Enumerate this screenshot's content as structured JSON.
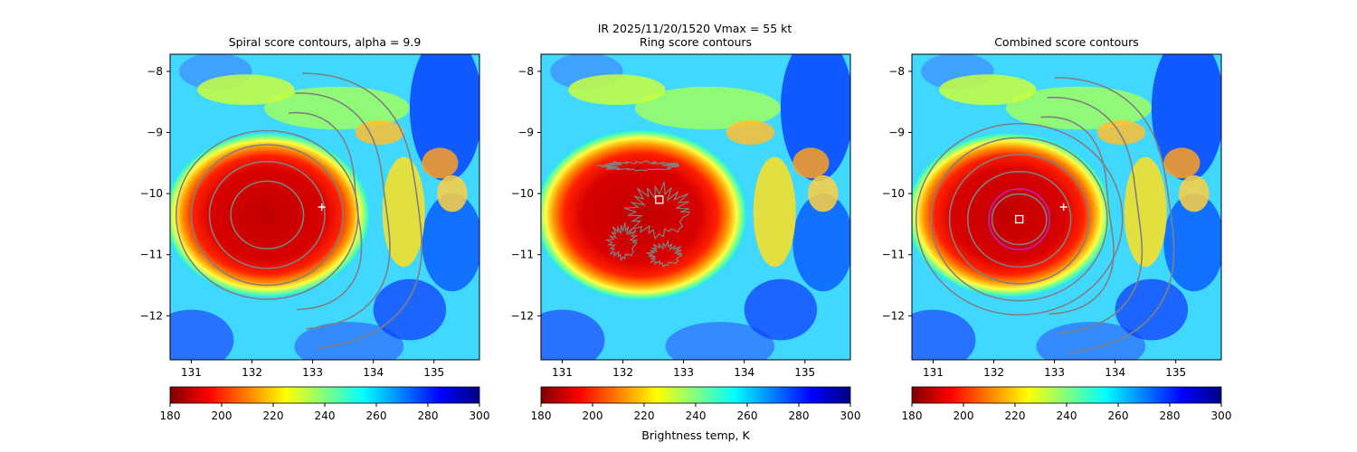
{
  "suptitle": "IR  2025/11/20/1520    Vmax = 55 kt",
  "colorbar_label": "Brightness temp, K",
  "colormap": [
    "#800000",
    "#ff0000",
    "#ff8000",
    "#ffff00",
    "#80ff80",
    "#00ffff",
    "#0080ff",
    "#0000ff",
    "#000080"
  ],
  "contour_color": "#808080",
  "circle_color": "#c020c0",
  "chart_data": [
    {
      "type": "heatmap",
      "title": "Spiral score contours, alpha =  9.9",
      "xlim": [
        130.65,
        135.75
      ],
      "ylim": [
        -12.72,
        -7.72
      ],
      "xticks": [
        131,
        132,
        133,
        134,
        135
      ],
      "yticks": [
        -8,
        -9,
        -10,
        -11,
        -12
      ],
      "storm_center": [
        132.25,
        -10.35
      ],
      "cold_radius_deg": [
        1.7,
        1.35
      ],
      "plus_marker": [
        133.15,
        -10.22
      ],
      "score_contours": {
        "center": [
          132.25,
          -10.35
        ],
        "radii": [
          0.6,
          0.95,
          1.25,
          1.5
        ],
        "spiral_bands": 3
      },
      "colorbar": {
        "min": 180,
        "max": 300,
        "ticks": [
          180,
          200,
          220,
          240,
          260,
          280,
          300
        ]
      }
    },
    {
      "type": "heatmap",
      "title": "Ring score contours",
      "xlim": [
        130.65,
        135.75
      ],
      "ylim": [
        -12.72,
        -7.72
      ],
      "xticks": [
        131,
        132,
        133,
        134,
        135
      ],
      "yticks": [
        -8,
        -9,
        -10,
        -11,
        -12
      ],
      "storm_center": [
        132.3,
        -10.35
      ],
      "cold_radius_deg": [
        1.75,
        1.4
      ],
      "square_marker": [
        132.6,
        -10.1
      ],
      "colorbar": {
        "min": 180,
        "max": 300,
        "ticks": [
          180,
          200,
          220,
          240,
          260,
          280,
          300
        ]
      }
    },
    {
      "type": "heatmap",
      "title": "Combined score contours",
      "xlim": [
        130.65,
        135.75
      ],
      "ylim": [
        -12.72,
        -7.72
      ],
      "xticks": [
        131,
        132,
        133,
        134,
        135
      ],
      "yticks": [
        -8,
        -9,
        -10,
        -11,
        -12
      ],
      "storm_center": [
        132.25,
        -10.35
      ],
      "cold_radius_deg": [
        1.7,
        1.35
      ],
      "plus_marker": [
        133.15,
        -10.22
      ],
      "square_marker": [
        132.42,
        -10.42
      ],
      "circle": {
        "center": [
          132.42,
          -10.42
        ],
        "radius_deg": 0.5
      },
      "score_contours": {
        "center": [
          132.42,
          -10.42
        ],
        "radii": [
          0.45,
          0.85,
          1.15,
          1.45,
          1.7
        ],
        "spiral_bands": 3
      },
      "colorbar": {
        "min": 180,
        "max": 300,
        "ticks": [
          180,
          200,
          220,
          240,
          260,
          280,
          300
        ]
      }
    }
  ]
}
